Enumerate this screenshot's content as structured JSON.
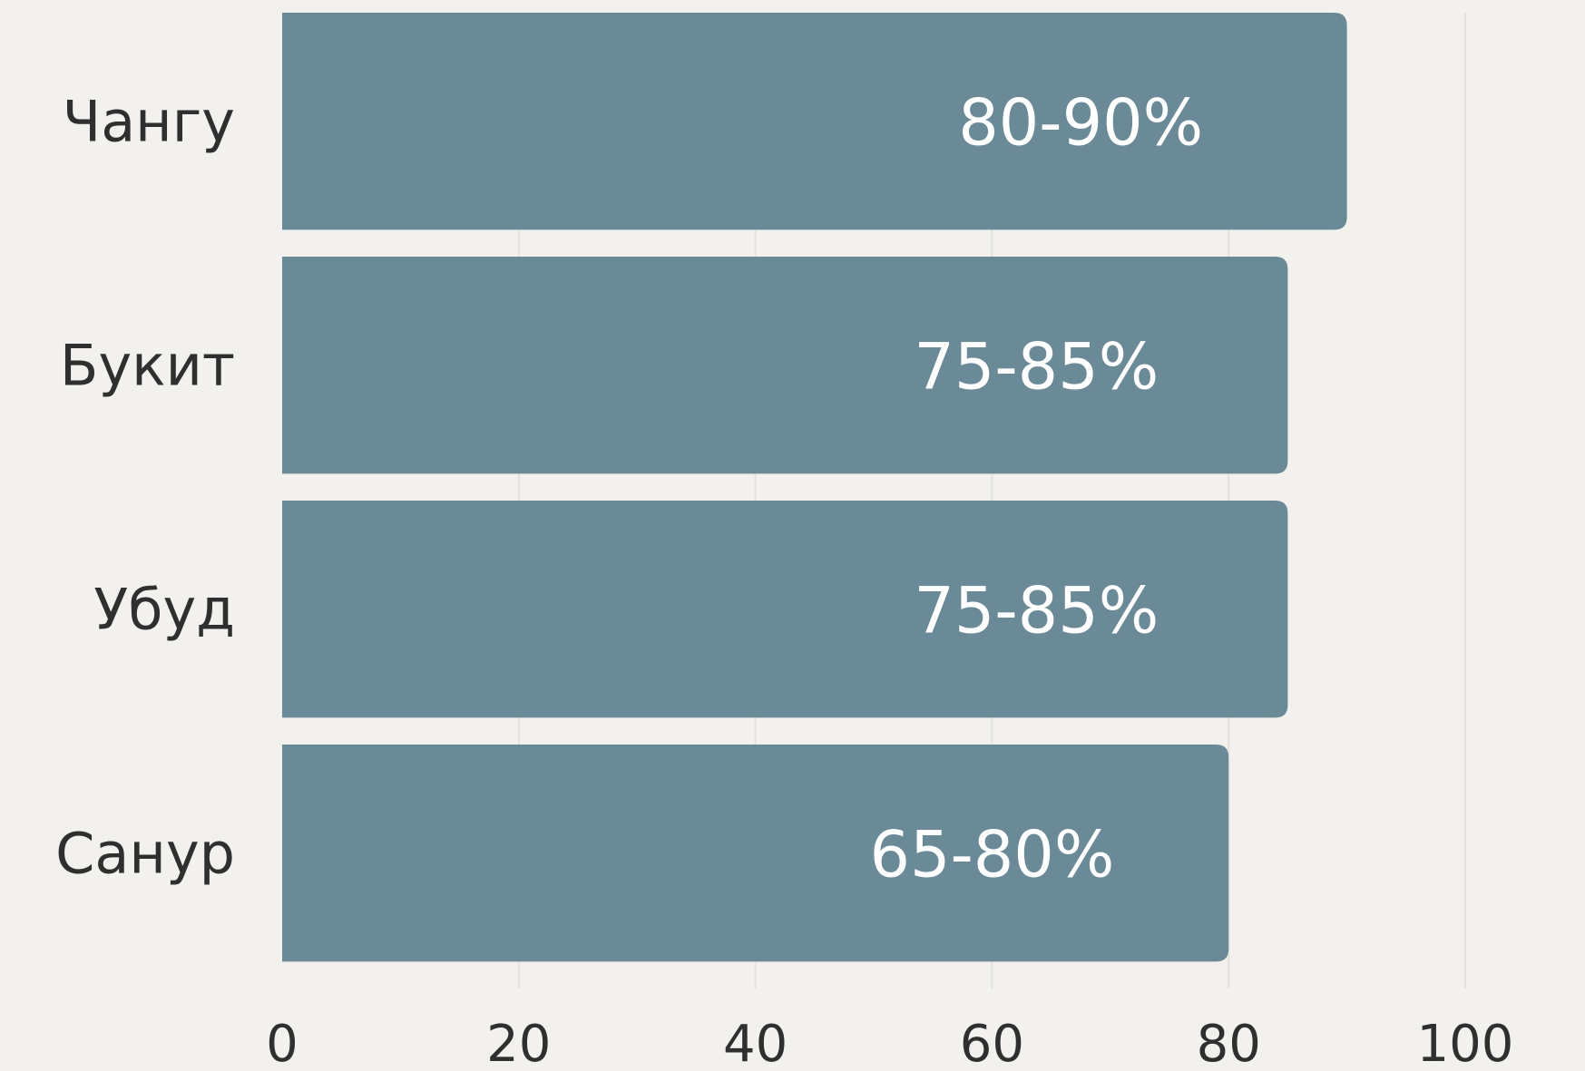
{
  "chart_data": {
    "type": "bar",
    "orientation": "horizontal",
    "categories": [
      "Чангу",
      "Букит",
      "Убуд",
      "Санур"
    ],
    "values": [
      90,
      85,
      85,
      80
    ],
    "data_labels": [
      "80-90%",
      "75-85%",
      "75-85%",
      "65-80%"
    ],
    "xlim": [
      0,
      100
    ],
    "x_ticks": [
      "0",
      "20",
      "40",
      "60",
      "80",
      "100"
    ],
    "title": "",
    "xlabel": "",
    "ylabel": "",
    "grid": "vertical",
    "legend": "none",
    "bar_color": "#6b8a98",
    "background_color": "#f2f1ed"
  }
}
